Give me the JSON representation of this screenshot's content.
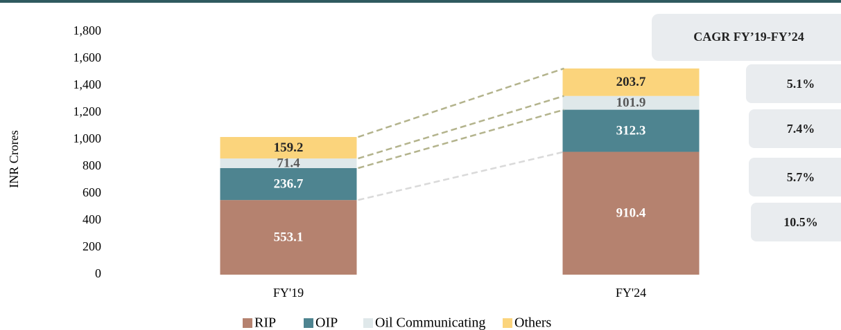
{
  "chart_data": {
    "type": "stacked_bar",
    "y_label": "INR Crores",
    "categories": [
      "FY'19",
      "FY'24"
    ],
    "series": [
      {
        "name": "RIP",
        "color": "#b5826f",
        "label_color": "#ffffff",
        "values": [
          553.1,
          910.4
        ],
        "cagr": "10.5%"
      },
      {
        "name": "OIP",
        "color": "#4e8490",
        "label_color": "#ffffff",
        "values": [
          236.7,
          312.3
        ],
        "cagr": "5.7%"
      },
      {
        "name": "Oil Communicating",
        "color": "#dfe8ea",
        "label_color": "#595959",
        "values": [
          71.4,
          101.9
        ],
        "cagr": "7.4%"
      },
      {
        "name": "Others",
        "color": "#fbd47c",
        "label_color": "#262626",
        "values": [
          159.2,
          203.7
        ],
        "cagr": "5.1%"
      }
    ],
    "cagr_title": "CAGR FY’19-FY’24",
    "ylim": [
      0,
      1800
    ],
    "yticks": [
      0,
      200,
      400,
      600,
      800,
      {
        "value": 1000,
        "label": "1,000"
      },
      {
        "value": 1200,
        "label": "1,200"
      },
      {
        "value": 1400,
        "label": "1,400"
      },
      {
        "value": 1600,
        "label": "1,600"
      },
      {
        "value": 1800,
        "label": "1,800"
      }
    ],
    "legend": "bottom"
  }
}
